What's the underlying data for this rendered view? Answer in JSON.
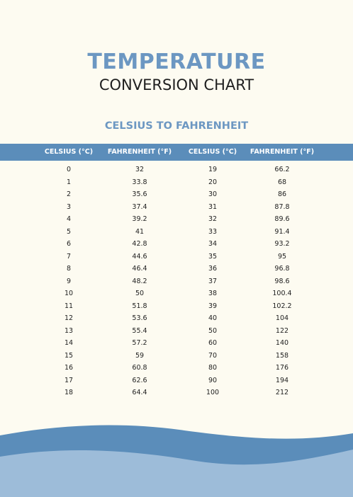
{
  "header": {
    "title": "TEMPERATURE",
    "subtitle": "CONVERSION CHART"
  },
  "section_title": "CELSIUS TO FAHRENHEIT",
  "table": {
    "headers": [
      "CELSIUS (°C)",
      "FAHRENHEIT (°F)",
      "CELSIUS (°C)",
      "FAHRENHEIT (°F)"
    ],
    "rows": [
      [
        "0",
        "32",
        "19",
        "66.2"
      ],
      [
        "1",
        "33.8",
        "20",
        "68"
      ],
      [
        "2",
        "35.6",
        "30",
        "86"
      ],
      [
        "3",
        "37.4",
        "31",
        "87.8"
      ],
      [
        "4",
        "39.2",
        "32",
        "89.6"
      ],
      [
        "5",
        "41",
        "33",
        "91.4"
      ],
      [
        "6",
        "42.8",
        "34",
        "93.2"
      ],
      [
        "7",
        "44.6",
        "35",
        "95"
      ],
      [
        "8",
        "46.4",
        "36",
        "96.8"
      ],
      [
        "9",
        "48.2",
        "37",
        "98.6"
      ],
      [
        "10",
        "50",
        "38",
        "100.4"
      ],
      [
        "11",
        "51.8",
        "39",
        "102.2"
      ],
      [
        "12",
        "53.6",
        "40",
        "104"
      ],
      [
        "13",
        "55.4",
        "50",
        "122"
      ],
      [
        "14",
        "57.2",
        "60",
        "140"
      ],
      [
        "15",
        "59",
        "70",
        "158"
      ],
      [
        "16",
        "60.8",
        "80",
        "176"
      ],
      [
        "17",
        "62.6",
        "90",
        "194"
      ],
      [
        "18",
        "64.4",
        "100",
        "212"
      ]
    ]
  }
}
